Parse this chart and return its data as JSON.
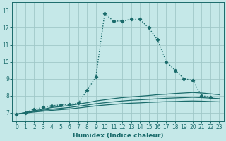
{
  "xlabel": "Humidex (Indice chaleur)",
  "bg_color": "#c5e8e8",
  "grid_color": "#a0c8c8",
  "line_color": "#1a6b6b",
  "xlim": [
    -0.5,
    23.5
  ],
  "ylim": [
    6.5,
    13.5
  ],
  "yticks": [
    7,
    8,
    9,
    10,
    11,
    12,
    13
  ],
  "xticks": [
    0,
    1,
    2,
    3,
    4,
    5,
    6,
    7,
    8,
    9,
    10,
    11,
    12,
    13,
    14,
    15,
    16,
    17,
    18,
    19,
    20,
    21,
    22,
    23
  ],
  "main_x": [
    0,
    1,
    2,
    3,
    4,
    5,
    6,
    7,
    8,
    9,
    10,
    11,
    12,
    13,
    14,
    15,
    16,
    17,
    18,
    19,
    20,
    21,
    22
  ],
  "main_y": [
    6.9,
    7.0,
    7.2,
    7.3,
    7.4,
    7.45,
    7.5,
    7.55,
    8.3,
    9.1,
    12.85,
    12.4,
    12.4,
    12.5,
    12.5,
    12.0,
    11.3,
    10.0,
    9.5,
    9.0,
    8.9,
    8.0,
    7.9
  ],
  "flat_x": [
    0,
    1,
    2,
    3,
    4,
    5,
    6,
    7,
    8,
    9,
    10,
    11,
    12,
    13,
    14,
    15,
    16,
    17,
    18,
    19,
    20,
    21,
    22,
    23
  ],
  "flat1_y": [
    6.9,
    7.0,
    7.1,
    7.2,
    7.3,
    7.35,
    7.42,
    7.5,
    7.58,
    7.68,
    7.75,
    7.82,
    7.88,
    7.92,
    7.96,
    8.0,
    8.05,
    8.08,
    8.12,
    8.15,
    8.18,
    8.15,
    8.1,
    8.05
  ],
  "flat2_y": [
    6.9,
    7.0,
    7.07,
    7.14,
    7.2,
    7.25,
    7.3,
    7.37,
    7.44,
    7.52,
    7.58,
    7.63,
    7.68,
    7.72,
    7.75,
    7.78,
    7.81,
    7.84,
    7.86,
    7.88,
    7.9,
    7.88,
    7.85,
    7.82
  ],
  "flat3_y": [
    6.9,
    6.97,
    7.03,
    7.08,
    7.13,
    7.17,
    7.21,
    7.27,
    7.33,
    7.39,
    7.44,
    7.48,
    7.52,
    7.55,
    7.57,
    7.6,
    7.62,
    7.64,
    7.65,
    7.67,
    7.68,
    7.67,
    7.65,
    7.63
  ]
}
